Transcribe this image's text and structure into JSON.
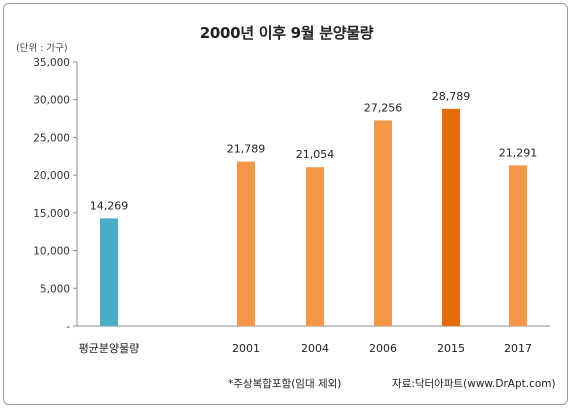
{
  "chart_data": {
    "type": "bar",
    "title": "2000년 이후 9월 분양물량",
    "unit_label": "(단위 : 가구)",
    "categories": [
      "평균분양물량",
      "2001",
      "2004",
      "2006",
      "2015",
      "2017"
    ],
    "values": [
      14269,
      21789,
      21054,
      27256,
      28789,
      21291
    ],
    "value_labels": [
      "14,269",
      "21,789",
      "21,054",
      "27,256",
      "28,789",
      "21,291"
    ],
    "colors": [
      "#4bacc6",
      "#f79646",
      "#f79646",
      "#f79646",
      "#e46c0a",
      "#f79646"
    ],
    "ylim": [
      0,
      35000
    ],
    "yticks": [
      0,
      5000,
      10000,
      15000,
      20000,
      25000,
      30000,
      35000
    ],
    "ytick_labels": [
      "-",
      "5,000",
      "10,000",
      "15,000",
      "20,000",
      "25,000",
      "30,000",
      "35,000"
    ],
    "grid": false,
    "legend": "none"
  },
  "footnote": "*주상복합포함(임대 제외)",
  "source": "자료:닥터아파트(www.DrApt.com)"
}
